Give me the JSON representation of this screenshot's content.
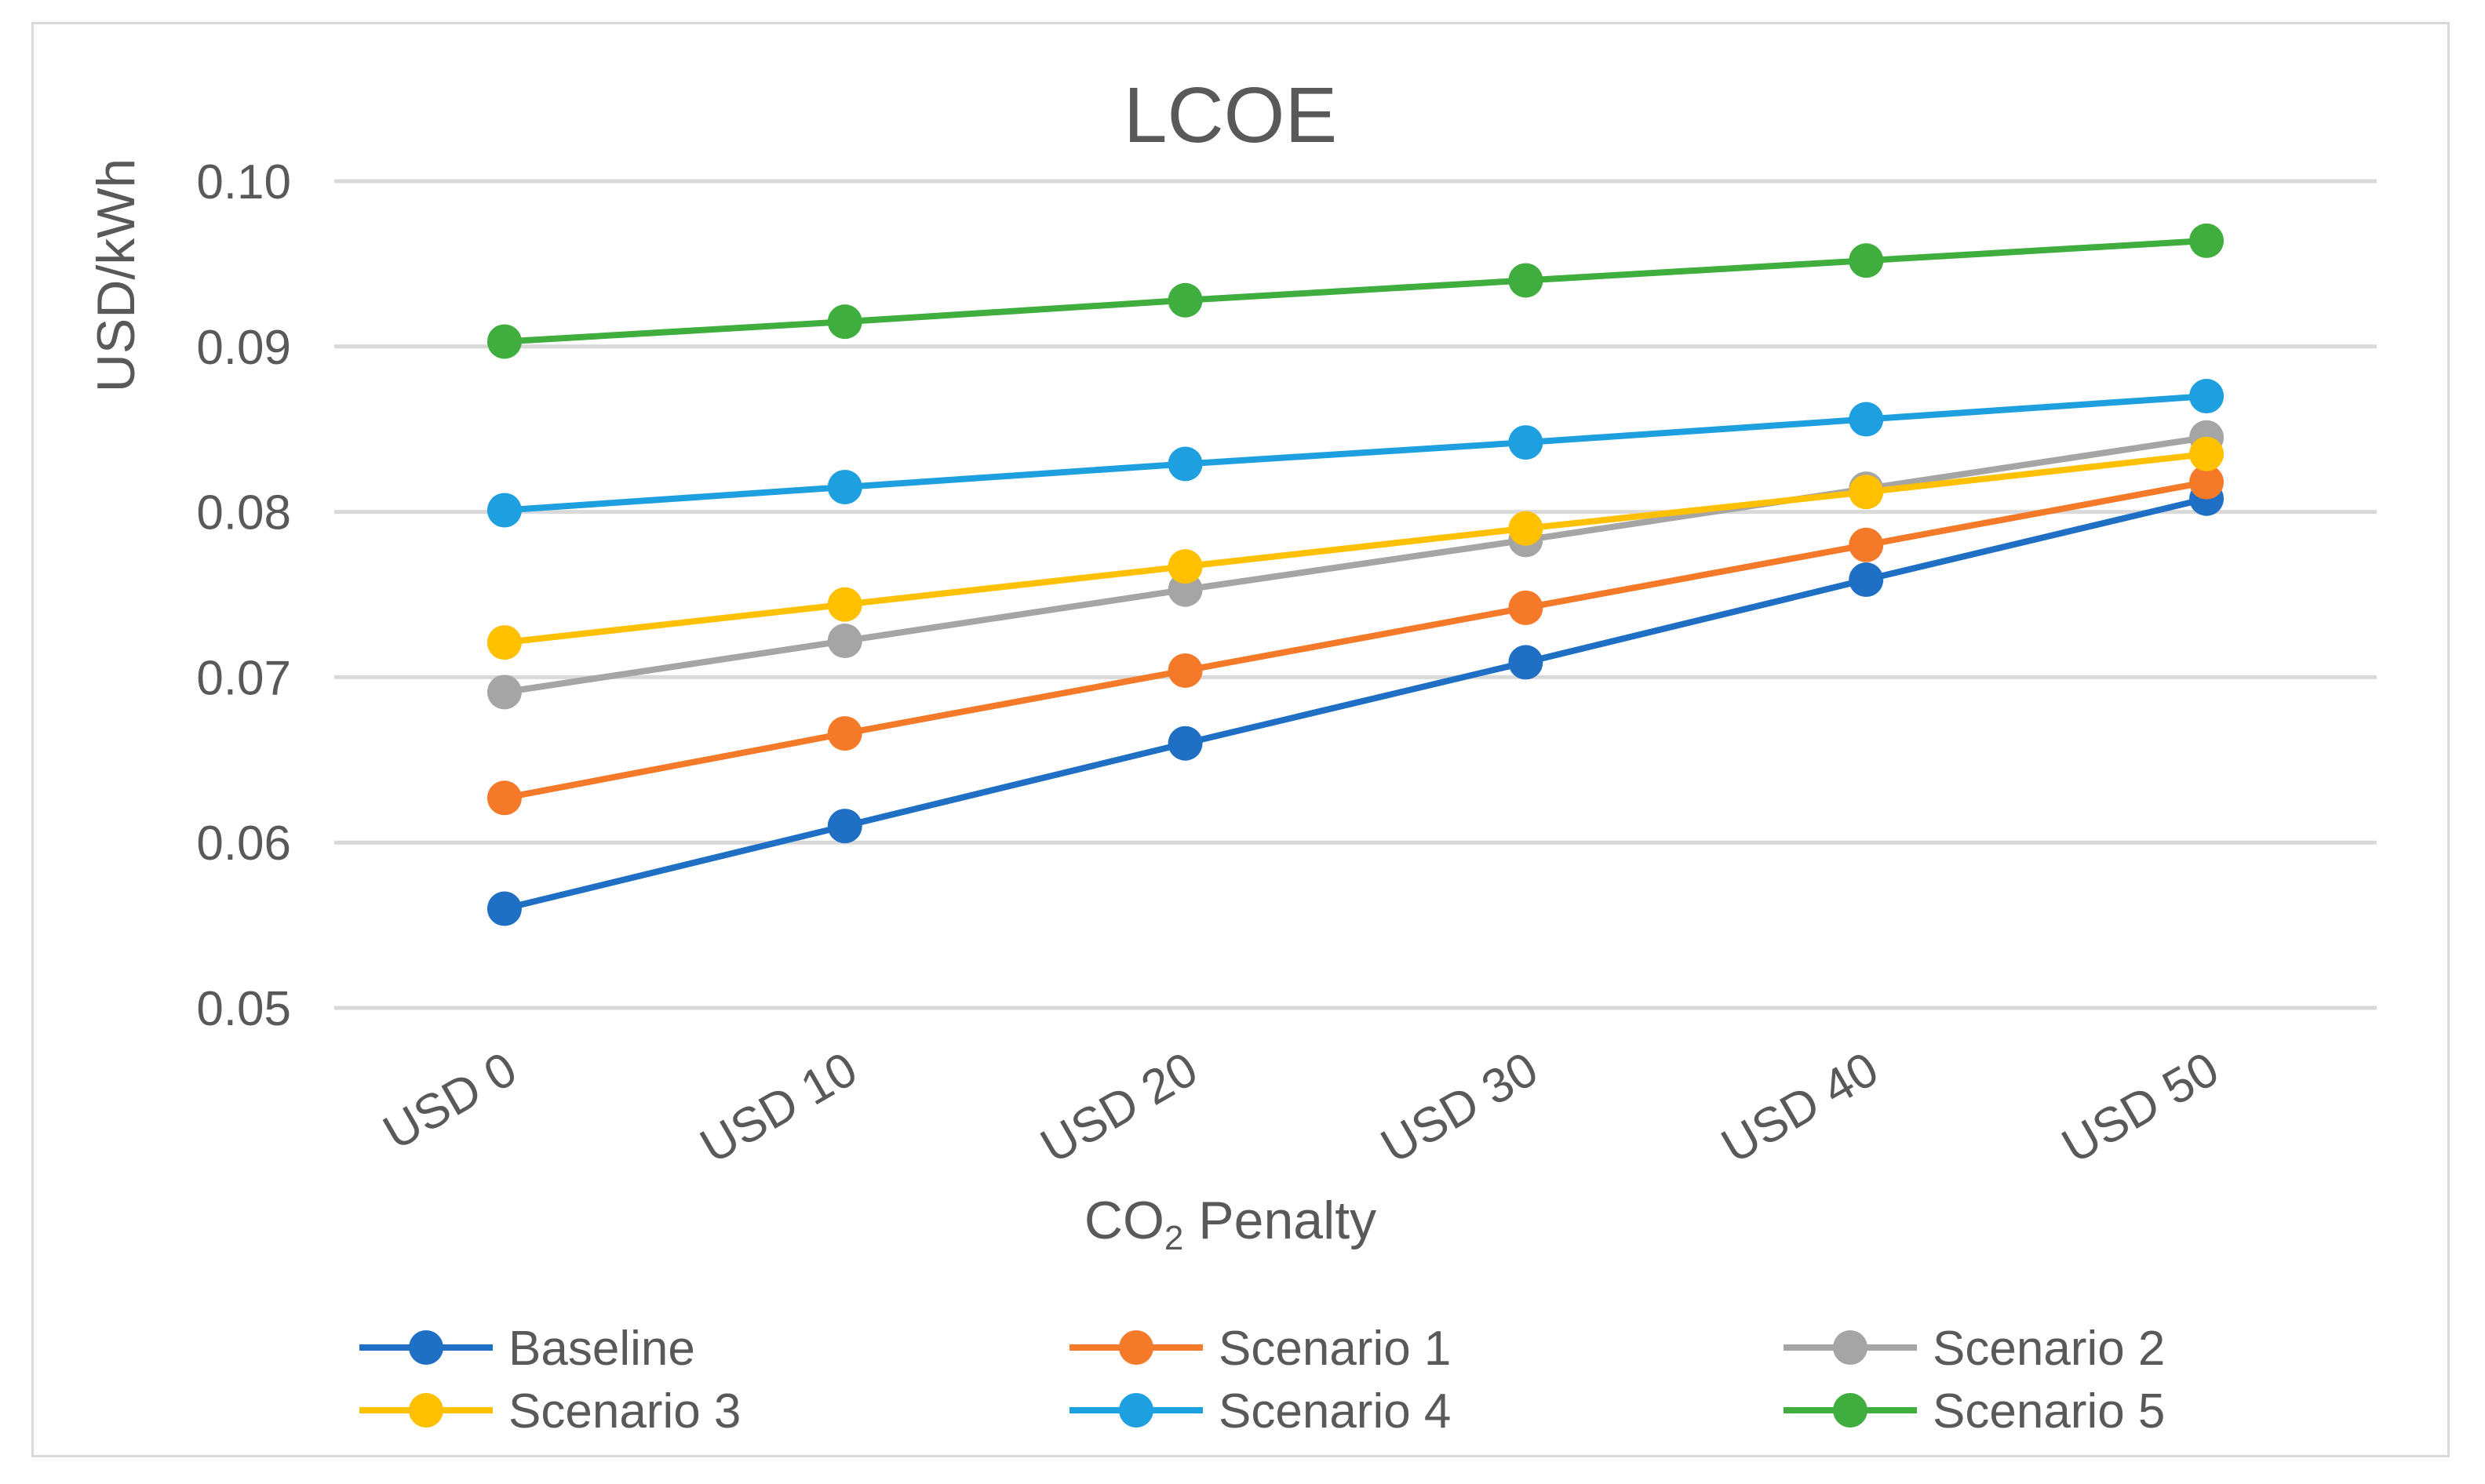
{
  "chart_data": {
    "type": "line",
    "title": "LCOE",
    "ylabel": "USD/kWh",
    "xlabel_main": "CO",
    "xlabel_sub": "2",
    "xlabel_rest": " Penalty",
    "categories": [
      "USD 0",
      "USD 10",
      "USD 20",
      "USD 30",
      "USD 40",
      "USD 50"
    ],
    "ylim": [
      0.05,
      0.1
    ],
    "yticks": [
      "0.05",
      "0.06",
      "0.07",
      "0.08",
      "0.09",
      "0.10"
    ],
    "grid": true,
    "legend_position": "bottom",
    "series": [
      {
        "name": "Baseline",
        "color": "#1f6fc5",
        "values": [
          0.056,
          0.061,
          0.066,
          0.0709,
          0.0759,
          0.0808
        ]
      },
      {
        "name": "Scenario 1",
        "color": "#f47a2a",
        "values": [
          0.0627,
          0.0666,
          0.0704,
          0.0742,
          0.078,
          0.0818
        ]
      },
      {
        "name": "Scenario 2",
        "color": "#a5a5a5",
        "values": [
          0.0691,
          0.0722,
          0.0753,
          0.0783,
          0.0814,
          0.0845
        ]
      },
      {
        "name": "Scenario 3",
        "color": "#ffc000",
        "values": [
          0.0721,
          0.0744,
          0.0767,
          0.079,
          0.0812,
          0.0835
        ]
      },
      {
        "name": "Scenario 4",
        "color": "#1ea0e0",
        "values": [
          0.0801,
          0.0815,
          0.0829,
          0.0842,
          0.0856,
          0.087
        ]
      },
      {
        "name": "Scenario 5",
        "color": "#3fae3f",
        "values": [
          0.0903,
          0.0915,
          0.0928,
          0.094,
          0.0952,
          0.0964
        ]
      }
    ]
  }
}
